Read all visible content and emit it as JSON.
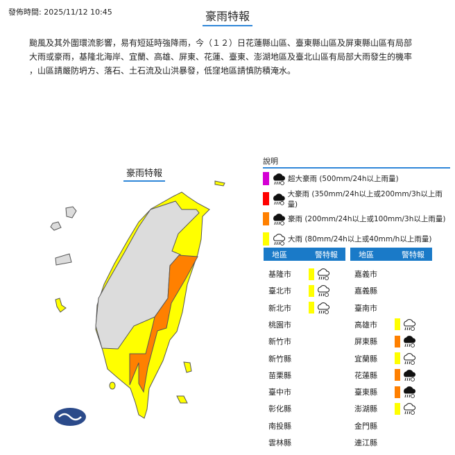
{
  "header": {
    "issue_time": "發佈時間: 2025/11/12 10:45",
    "title": "豪雨特報"
  },
  "description": [
    "颱風及其外圍環流影響，易有短延時強降雨，今（１２）日花蓮縣山區、臺東縣山區及屏東縣山區有局部",
    "大雨或豪雨，基隆北海岸、宜蘭、高雄、屏東、花蓮、臺東、澎湖地區及臺北山區有局部大雨發生的機率",
    "，山區請嚴防坍方、落石、土石流及山洪暴發，低窪地區請慎防積淹水。"
  ],
  "map": {
    "title": "豪雨特報"
  },
  "colors": {
    "extreme_torrential": "#d400d4",
    "torrential_heavy": "#ff0000",
    "torrential": "#ff8000",
    "heavy": "#ffff00",
    "none": "#dcdcdc",
    "accent": "#1a7ac8"
  },
  "legend": {
    "title": "說明",
    "items": [
      {
        "level": "extreme_torrential",
        "icon": "cloud-rain-dark-icon",
        "label": "超大豪雨 (500mm/24h以上雨量)"
      },
      {
        "level": "torrential_heavy",
        "icon": "cloud-rain-dark-icon",
        "label": "大豪雨 (350mm/24h以上或200mm/3h以上雨量)"
      },
      {
        "level": "torrential",
        "icon": "cloud-rain-dark-icon",
        "label": "豪雨 (200mm/24h以上或100mm/3h以上雨量)"
      },
      {
        "level": "heavy",
        "icon": "cloud-rain-outline-icon",
        "label": "大雨 (80mm/24h以上或40mm/h以上雨量)"
      }
    ]
  },
  "table": {
    "col_region": "地區",
    "col_warning": "警特報",
    "left": [
      {
        "name": "基隆市",
        "level": "heavy"
      },
      {
        "name": "臺北市",
        "level": "heavy"
      },
      {
        "name": "新北市",
        "level": "heavy"
      },
      {
        "name": "桃園市",
        "level": ""
      },
      {
        "name": "新竹市",
        "level": ""
      },
      {
        "name": "新竹縣",
        "level": ""
      },
      {
        "name": "苗栗縣",
        "level": ""
      },
      {
        "name": "臺中市",
        "level": ""
      },
      {
        "name": "彰化縣",
        "level": ""
      },
      {
        "name": "南投縣",
        "level": ""
      },
      {
        "name": "雲林縣",
        "level": ""
      }
    ],
    "right": [
      {
        "name": "嘉義市",
        "level": ""
      },
      {
        "name": "嘉義縣",
        "level": ""
      },
      {
        "name": "臺南市",
        "level": ""
      },
      {
        "name": "高雄市",
        "level": "heavy"
      },
      {
        "name": "屏東縣",
        "level": "torrential"
      },
      {
        "name": "宜蘭縣",
        "level": "heavy"
      },
      {
        "name": "花蓮縣",
        "level": "torrential"
      },
      {
        "name": "臺東縣",
        "level": "torrential"
      },
      {
        "name": "澎湖縣",
        "level": "heavy"
      },
      {
        "name": "金門縣",
        "level": ""
      },
      {
        "name": "連江縣",
        "level": ""
      }
    ]
  }
}
